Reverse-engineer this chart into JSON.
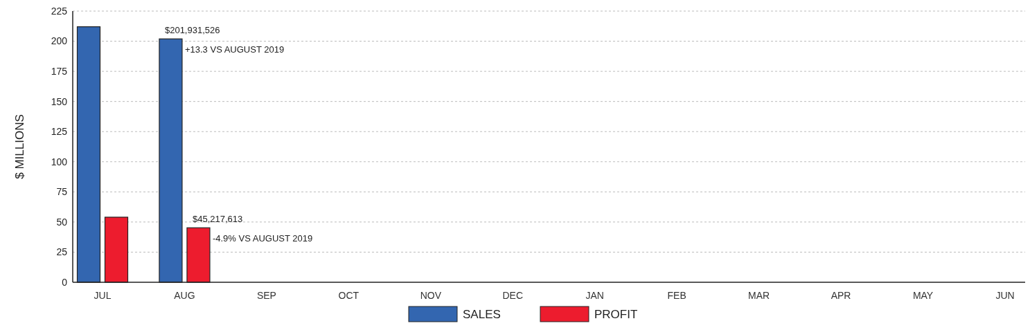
{
  "chart_data": {
    "type": "bar",
    "ylabel": "$ MILLIONS",
    "categories": [
      "JUL",
      "AUG",
      "SEP",
      "OCT",
      "NOV",
      "DEC",
      "JAN",
      "FEB",
      "MAR",
      "APR",
      "MAY",
      "JUN"
    ],
    "series": [
      {
        "name": "SALES",
        "color": "#3366b0",
        "values": [
          212,
          201.931526,
          null,
          null,
          null,
          null,
          null,
          null,
          null,
          null,
          null,
          null
        ]
      },
      {
        "name": "PROFIT",
        "color": "#ed1c2e",
        "values": [
          54,
          45.217613,
          null,
          null,
          null,
          null,
          null,
          null,
          null,
          null,
          null,
          null
        ]
      }
    ],
    "ylim": [
      0,
      225
    ],
    "yticks": [
      0,
      25,
      50,
      75,
      100,
      125,
      150,
      175,
      200,
      225
    ],
    "grid": "y",
    "legend": "bottom",
    "annotations": [
      {
        "text": "$201,931,526",
        "x": "AUG",
        "y": 201.931526
      },
      "+13.3  VS AUGUST 2019",
      {
        "text": "$45,217,613",
        "x": "AUG",
        "y": 45.217613
      },
      "-4.9% VS AUGUST 2019"
    ]
  }
}
